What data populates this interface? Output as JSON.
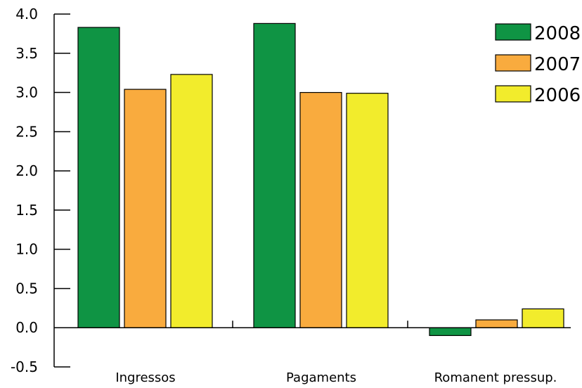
{
  "chart_data": {
    "type": "bar",
    "categories": [
      "Ingressos",
      "Pagaments",
      "Romanent pressup."
    ],
    "series": [
      {
        "name": "2008",
        "values": [
          3.83,
          3.88,
          -0.1
        ],
        "color": "#0f9444"
      },
      {
        "name": "2007",
        "values": [
          3.04,
          3.0,
          0.1
        ],
        "color": "#f9ab3e"
      },
      {
        "name": "2006",
        "values": [
          3.23,
          2.99,
          0.24
        ],
        "color": "#f2ec2c"
      }
    ],
    "ylim": [
      -0.5,
      4.0
    ],
    "yticks": [
      "-0.5",
      "0.0",
      "0.5",
      "1.0",
      "1.5",
      "2.0",
      "2.5",
      "3.0",
      "3.5",
      "4.0"
    ],
    "grid": false,
    "legend_position": "top-right",
    "title": "",
    "xlabel": "",
    "ylabel": ""
  }
}
